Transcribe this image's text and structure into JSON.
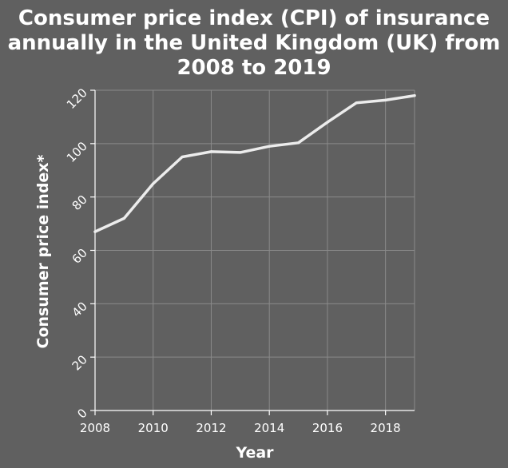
{
  "chart_data": {
    "type": "line",
    "title_lines": [
      "Consumer price index (CPI) of insurance",
      "annually in the United Kingdom (UK) from",
      "2008 to 2019"
    ],
    "xlabel": "Year",
    "ylabel": "Consumer price index*",
    "xlim": [
      2008,
      2019
    ],
    "ylim": [
      0,
      120
    ],
    "x_ticks": [
      2008,
      2010,
      2012,
      2014,
      2016,
      2018
    ],
    "y_ticks": [
      0,
      20,
      40,
      60,
      80,
      100,
      120
    ],
    "grid": true,
    "x": [
      2008,
      2009,
      2010,
      2011,
      2012,
      2013,
      2014,
      2015,
      2016,
      2017,
      2018,
      2019
    ],
    "y": [
      67,
      72,
      85,
      95,
      97,
      96.7,
      99,
      100.3,
      108,
      115.3,
      116.3,
      118
    ]
  }
}
